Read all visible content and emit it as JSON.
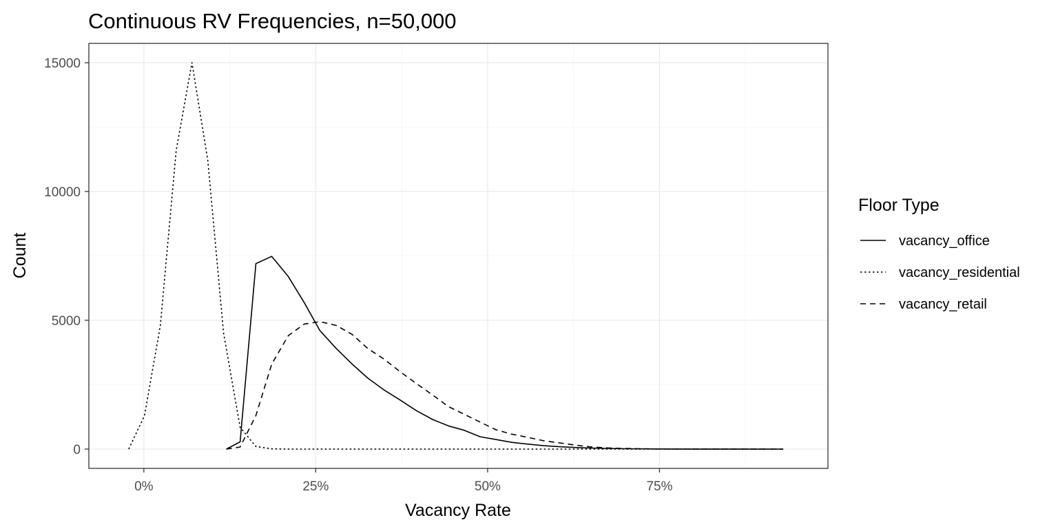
{
  "chart_data": {
    "type": "line",
    "title": "Continuous RV Frequencies, n=50,000",
    "xlabel": "Vacancy Rate",
    "ylabel": "Count",
    "xlim": [
      -0.08,
      0.995
    ],
    "ylim": [
      -750,
      15750
    ],
    "x_ticks": [
      {
        "value": 0,
        "label": "0%"
      },
      {
        "value": 0.25,
        "label": "25%"
      },
      {
        "value": 0.5,
        "label": "50%"
      },
      {
        "value": 0.75,
        "label": "75%"
      }
    ],
    "y_ticks": [
      {
        "value": 0,
        "label": "0"
      },
      {
        "value": 5000,
        "label": "5000"
      },
      {
        "value": 10000,
        "label": "10000"
      },
      {
        "value": 15000,
        "label": "15000"
      }
    ],
    "grid": true,
    "legend": {
      "title": "Floor Type",
      "position": "right"
    },
    "series": [
      {
        "name": "vacancy_office",
        "dash": "solid",
        "x": [
          0.12,
          0.14,
          0.163,
          0.186,
          0.21,
          0.233,
          0.256,
          0.28,
          0.303,
          0.326,
          0.349,
          0.373,
          0.396,
          0.42,
          0.443,
          0.466,
          0.489,
          0.512,
          0.535,
          0.559,
          0.582,
          0.605,
          0.628,
          0.652,
          0.675,
          0.7,
          0.75,
          0.8,
          0.85,
          0.93
        ],
        "values": [
          0,
          280,
          7200,
          7480,
          6700,
          5700,
          4600,
          3900,
          3300,
          2750,
          2300,
          1900,
          1500,
          1150,
          900,
          730,
          480,
          370,
          260,
          190,
          130,
          90,
          60,
          40,
          25,
          12,
          5,
          2,
          1,
          0
        ]
      },
      {
        "name": "vacancy_residential",
        "dash": "dotted",
        "x": [
          -0.022,
          0.001,
          0.024,
          0.047,
          0.07,
          0.093,
          0.116,
          0.14,
          0.163,
          0.186,
          0.21,
          0.25,
          0.3,
          0.4,
          0.5,
          0.6,
          0.7,
          0.8,
          0.93
        ],
        "values": [
          0,
          1300,
          4800,
          11600,
          15000,
          11200,
          4500,
          850,
          100,
          10,
          0,
          0,
          0,
          0,
          0,
          0,
          0,
          0,
          0
        ]
      },
      {
        "name": "vacancy_retail",
        "dash": "dashed",
        "x": [
          0.12,
          0.14,
          0.163,
          0.186,
          0.21,
          0.233,
          0.256,
          0.28,
          0.303,
          0.326,
          0.349,
          0.373,
          0.396,
          0.42,
          0.443,
          0.466,
          0.489,
          0.512,
          0.535,
          0.559,
          0.582,
          0.605,
          0.628,
          0.652,
          0.675,
          0.698,
          0.721,
          0.744,
          0.8,
          0.93
        ],
        "values": [
          0,
          80,
          1300,
          3300,
          4400,
          4850,
          4950,
          4800,
          4450,
          3900,
          3500,
          3000,
          2550,
          2100,
          1650,
          1350,
          1050,
          750,
          580,
          450,
          320,
          240,
          150,
          80,
          45,
          25,
          12,
          5,
          2,
          0
        ]
      }
    ]
  }
}
